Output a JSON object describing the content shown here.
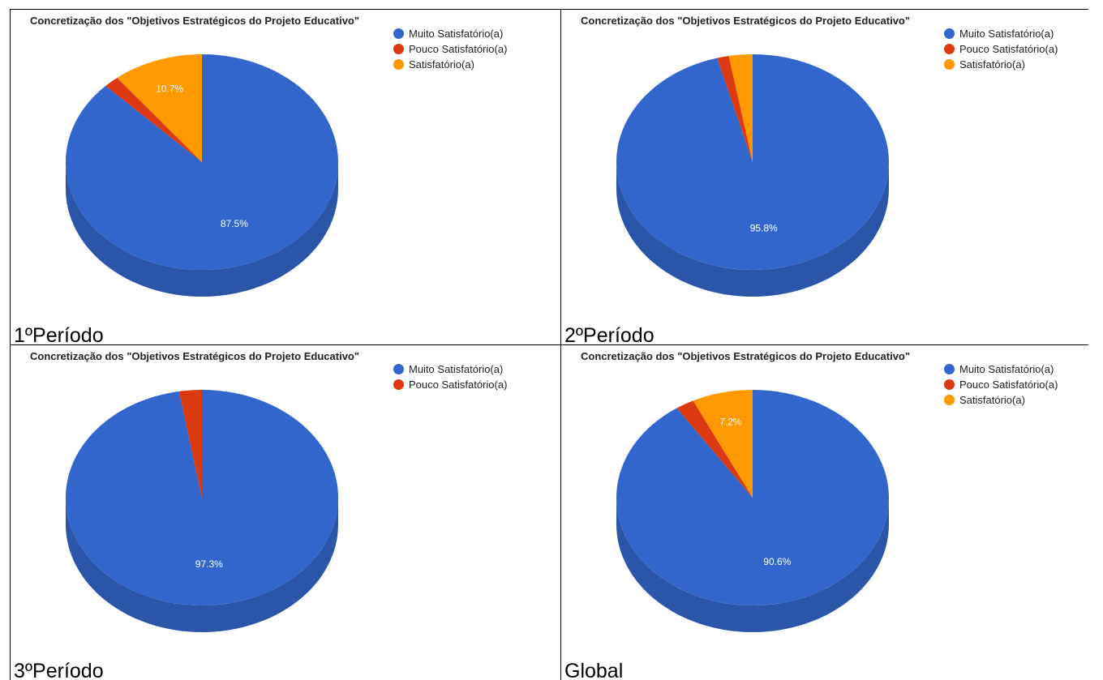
{
  "colors": {
    "muito": "#3366cc",
    "muito_side": "#2a55a8",
    "pouco": "#dc3912",
    "pouco_side": "#b32e0f",
    "satisfatorio": "#ff9900",
    "satisfatorio_side": "#cc7a00"
  },
  "chart_data": [
    {
      "type": "pie",
      "title": "Concretização dos \"Objetivos Estratégicos do Projeto Educativo\"",
      "caption": "1ºPeríodo",
      "categories": [
        "Muito Satisfatório(a)",
        "Pouco Satisfatório(a)",
        "Satisfatório(a)"
      ],
      "values": [
        87.5,
        1.8,
        10.7
      ],
      "labels": [
        "87.5%",
        "",
        "10.7%"
      ]
    },
    {
      "type": "pie",
      "title": "Concretização dos \"Objetivos Estratégicos do Projeto Educativo\"",
      "caption": "2ºPeríodo",
      "categories": [
        "Muito Satisfatório(a)",
        "Pouco Satisfatório(a)",
        "Satisfatório(a)"
      ],
      "values": [
        95.8,
        1.4,
        2.8
      ],
      "labels": [
        "95.8%",
        "",
        ""
      ]
    },
    {
      "type": "pie",
      "title": "Concretização dos \"Objetivos Estratégicos do Projeto Educativo\"",
      "caption": "3ºPeríodo",
      "categories": [
        "Muito Satisfatório(a)",
        "Pouco Satisfatório(a)"
      ],
      "values": [
        97.3,
        2.7
      ],
      "labels": [
        "97.3%",
        ""
      ]
    },
    {
      "type": "pie",
      "title": "Concretização dos \"Objetivos Estratégicos do Projeto Educativo\"",
      "caption": "Global",
      "categories": [
        "Muito Satisfatório(a)",
        "Pouco Satisfatório(a)",
        "Satisfatório(a)"
      ],
      "values": [
        90.6,
        2.2,
        7.2
      ],
      "labels": [
        "90.6%",
        "",
        "7.2%"
      ]
    }
  ]
}
